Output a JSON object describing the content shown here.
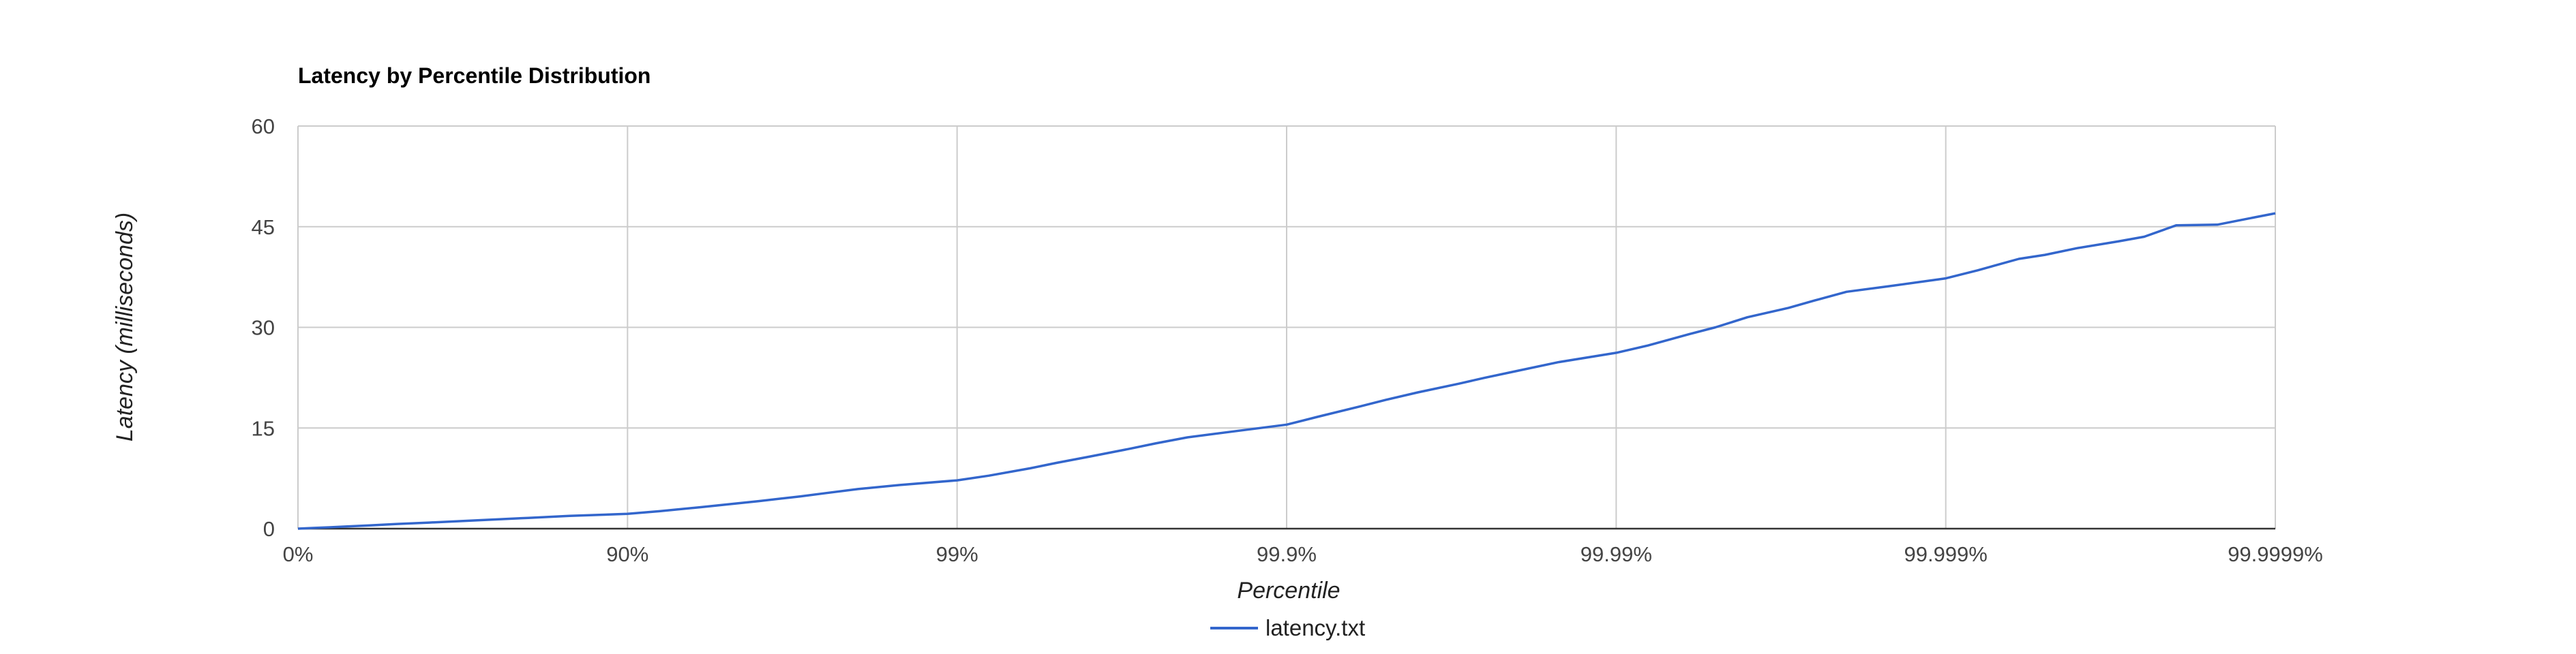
{
  "chart_data": {
    "type": "line",
    "title": "Latency by Percentile Distribution",
    "xlabel": "Percentile",
    "ylabel": "Latency (milliseconds)",
    "x_scale": "log(1/(1-p))",
    "x_ticks": [
      "0%",
      "90%",
      "99%",
      "99.9%",
      "99.99%",
      "99.999%",
      "99.9999%"
    ],
    "y_ticks": [
      "0",
      "15",
      "30",
      "45",
      "60"
    ],
    "ylim": [
      0,
      60
    ],
    "grid": true,
    "legend_position": "bottom",
    "series": [
      {
        "name": "latency.txt",
        "color": "#3366cc",
        "x": [
          "0%",
          "10%",
          "20%",
          "30%",
          "40%",
          "50%",
          "60%",
          "70%",
          "80%",
          "85%",
          "90%",
          "92%",
          "94%",
          "95%",
          "96%",
          "97%",
          "97.5%",
          "98%",
          "98.5%",
          "99%",
          "99.2%",
          "99.4%",
          "99.5%",
          "99.6%",
          "99.7%",
          "99.75%",
          "99.8%",
          "99.85%",
          "99.9%",
          "99.92%",
          "99.94%",
          "99.95%",
          "99.96%",
          "99.97%",
          "99.975%",
          "99.98%",
          "99.985%",
          "99.99%",
          "99.992%",
          "99.994%",
          "99.995%",
          "99.996%",
          "99.997%",
          "99.9975%",
          "99.998%",
          "99.9985%",
          "99.999%",
          "99.9992%",
          "99.9994%",
          "99.9995%",
          "99.9996%",
          "99.9997%",
          "99.99975%",
          "99.9998%",
          "99.99985%",
          "99.9999%"
        ],
        "y": [
          0.0,
          0.1,
          0.2,
          0.35,
          0.5,
          0.7,
          0.9,
          1.2,
          1.6,
          1.9,
          2.2,
          2.6,
          3.2,
          3.6,
          4.1,
          4.8,
          5.3,
          5.9,
          6.5,
          7.2,
          7.9,
          9.0,
          9.8,
          10.7,
          11.9,
          12.7,
          13.6,
          14.4,
          15.5,
          16.7,
          18.2,
          19.2,
          20.3,
          21.6,
          22.5,
          23.5,
          24.8,
          26.2,
          27.3,
          29.0,
          30.0,
          31.5,
          32.9,
          34.0,
          35.3,
          36.1,
          37.3,
          38.5,
          40.2,
          40.8,
          41.8,
          42.8,
          43.5,
          45.2,
          45.3,
          47.0
        ]
      }
    ]
  }
}
